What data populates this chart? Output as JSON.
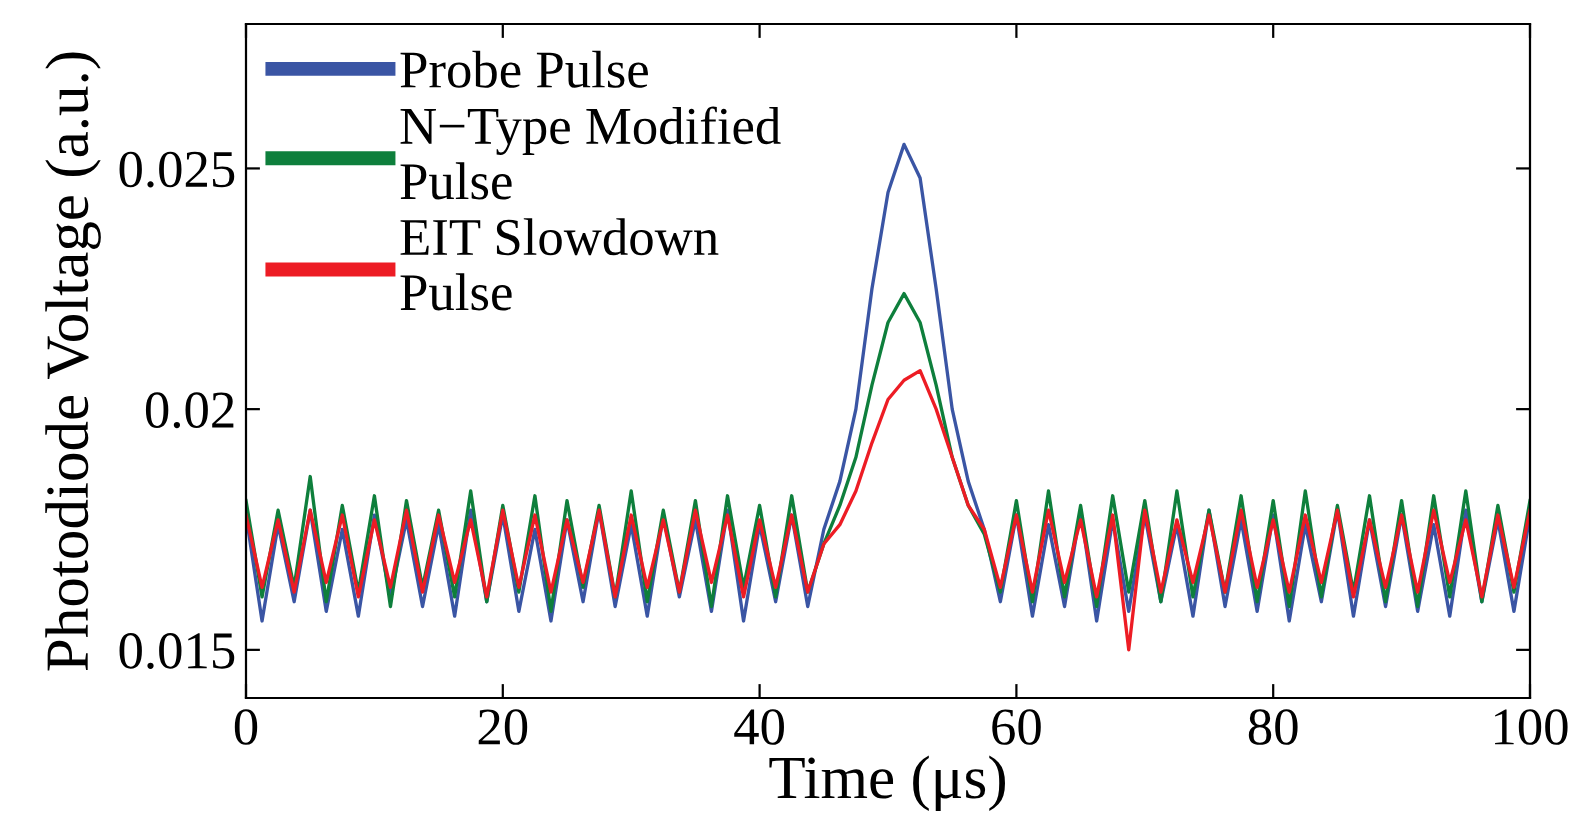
{
  "chart_data": {
    "type": "line",
    "xlabel": "Time (μs)",
    "ylabel": "Photodiode Voltage (a.u.)",
    "xlim": [
      0,
      100
    ],
    "xticks": [
      0,
      20,
      40,
      60,
      80,
      100
    ],
    "ylim": [
      0.014,
      0.028
    ],
    "yticks": [
      0.015,
      0.02,
      0.025
    ],
    "grid": false,
    "legend": "top left",
    "marker": "none",
    "line_style": "solid",
    "x": [
      0,
      1.25,
      2.5,
      3.75,
      5,
      6.25,
      7.5,
      8.75,
      10,
      11.25,
      12.5,
      13.75,
      15,
      16.25,
      17.5,
      18.75,
      20,
      21.25,
      22.5,
      23.75,
      25,
      26.25,
      27.5,
      28.75,
      30,
      31.25,
      32.5,
      33.75,
      35,
      36.25,
      37.5,
      38.75,
      40,
      41.25,
      42.5,
      43.75,
      45,
      46.25,
      47.5,
      48.75,
      50,
      51.25,
      52.5,
      53.75,
      55,
      56.25,
      57.5,
      58.75,
      60,
      61.25,
      62.5,
      63.75,
      65,
      66.25,
      67.5,
      68.75,
      70,
      71.25,
      72.5,
      73.75,
      75,
      76.25,
      77.5,
      78.75,
      80,
      81.25,
      82.5,
      83.75,
      85,
      86.25,
      87.5,
      88.75,
      90,
      91.25,
      92.5,
      93.75,
      95,
      96.25,
      97.5,
      98.75,
      100
    ],
    "series": [
      {
        "name": "Probe Pulse",
        "color": "#3a55a4",
        "values": [
          0.0178,
          0.0156,
          0.0176,
          0.016,
          0.0179,
          0.0158,
          0.0175,
          0.0157,
          0.0178,
          0.0161,
          0.0177,
          0.0159,
          0.0176,
          0.0157,
          0.0179,
          0.016,
          0.0178,
          0.0158,
          0.0175,
          0.0156,
          0.0177,
          0.016,
          0.0179,
          0.0159,
          0.0176,
          0.0157,
          0.0178,
          0.0161,
          0.0177,
          0.0158,
          0.0179,
          0.0156,
          0.0176,
          0.016,
          0.0178,
          0.0159,
          0.0175,
          0.0185,
          0.02,
          0.0225,
          0.0245,
          0.0255,
          0.0248,
          0.0225,
          0.02,
          0.0185,
          0.0175,
          0.016,
          0.0178,
          0.0157,
          0.0176,
          0.0159,
          0.0179,
          0.0156,
          0.0177,
          0.0158,
          0.0178,
          0.016,
          0.0176,
          0.0157,
          0.0179,
          0.0159,
          0.0177,
          0.0158,
          0.0178,
          0.0156,
          0.0176,
          0.016,
          0.0179,
          0.0157,
          0.0177,
          0.0159,
          0.0178,
          0.0158,
          0.0176,
          0.0157,
          0.0179,
          0.016,
          0.0177,
          0.0158,
          0.0178
        ]
      },
      {
        "name": "N−Type Modified\nPulse",
        "color": "#0e7f3c",
        "values": [
          0.0181,
          0.0161,
          0.0179,
          0.0163,
          0.0186,
          0.016,
          0.018,
          0.0162,
          0.0182,
          0.0159,
          0.0181,
          0.0163,
          0.0179,
          0.0161,
          0.0183,
          0.016,
          0.018,
          0.0162,
          0.0182,
          0.0158,
          0.0181,
          0.0163,
          0.018,
          0.0161,
          0.0183,
          0.016,
          0.0179,
          0.0162,
          0.0181,
          0.0159,
          0.0182,
          0.0163,
          0.018,
          0.0161,
          0.0182,
          0.0162,
          0.0172,
          0.018,
          0.019,
          0.0205,
          0.0218,
          0.0224,
          0.0218,
          0.0205,
          0.019,
          0.018,
          0.0174,
          0.0162,
          0.0181,
          0.016,
          0.0183,
          0.0161,
          0.018,
          0.0159,
          0.0182,
          0.0162,
          0.0181,
          0.016,
          0.0183,
          0.0161,
          0.0179,
          0.0162,
          0.0182,
          0.016,
          0.0181,
          0.0159,
          0.0183,
          0.0161,
          0.018,
          0.0162,
          0.0182,
          0.016,
          0.0181,
          0.0159,
          0.0182,
          0.0161,
          0.0183,
          0.016,
          0.018,
          0.0162,
          0.0181
        ]
      },
      {
        "name": "EIT Slowdown\nPulse",
        "color": "#ed1c24",
        "values": [
          0.0178,
          0.0163,
          0.0177,
          0.0162,
          0.0179,
          0.0164,
          0.0178,
          0.0161,
          0.0177,
          0.0163,
          0.0179,
          0.0162,
          0.0178,
          0.0164,
          0.0177,
          0.0161,
          0.0179,
          0.0163,
          0.0178,
          0.0162,
          0.0177,
          0.0164,
          0.0179,
          0.0161,
          0.0178,
          0.0163,
          0.0177,
          0.0162,
          0.0179,
          0.0164,
          0.0178,
          0.0161,
          0.0177,
          0.0163,
          0.0178,
          0.0162,
          0.0172,
          0.0176,
          0.0183,
          0.0193,
          0.0202,
          0.0206,
          0.0208,
          0.02,
          0.019,
          0.018,
          0.0175,
          0.0163,
          0.0178,
          0.0162,
          0.0179,
          0.0164,
          0.0177,
          0.0161,
          0.0178,
          0.015,
          0.0179,
          0.0162,
          0.0177,
          0.0164,
          0.0178,
          0.0162,
          0.0179,
          0.0163,
          0.0177,
          0.0162,
          0.0178,
          0.0164,
          0.0179,
          0.0161,
          0.0177,
          0.0163,
          0.0178,
          0.0162,
          0.0179,
          0.0164,
          0.0177,
          0.0161,
          0.0178,
          0.0163,
          0.0179
        ]
      }
    ]
  }
}
